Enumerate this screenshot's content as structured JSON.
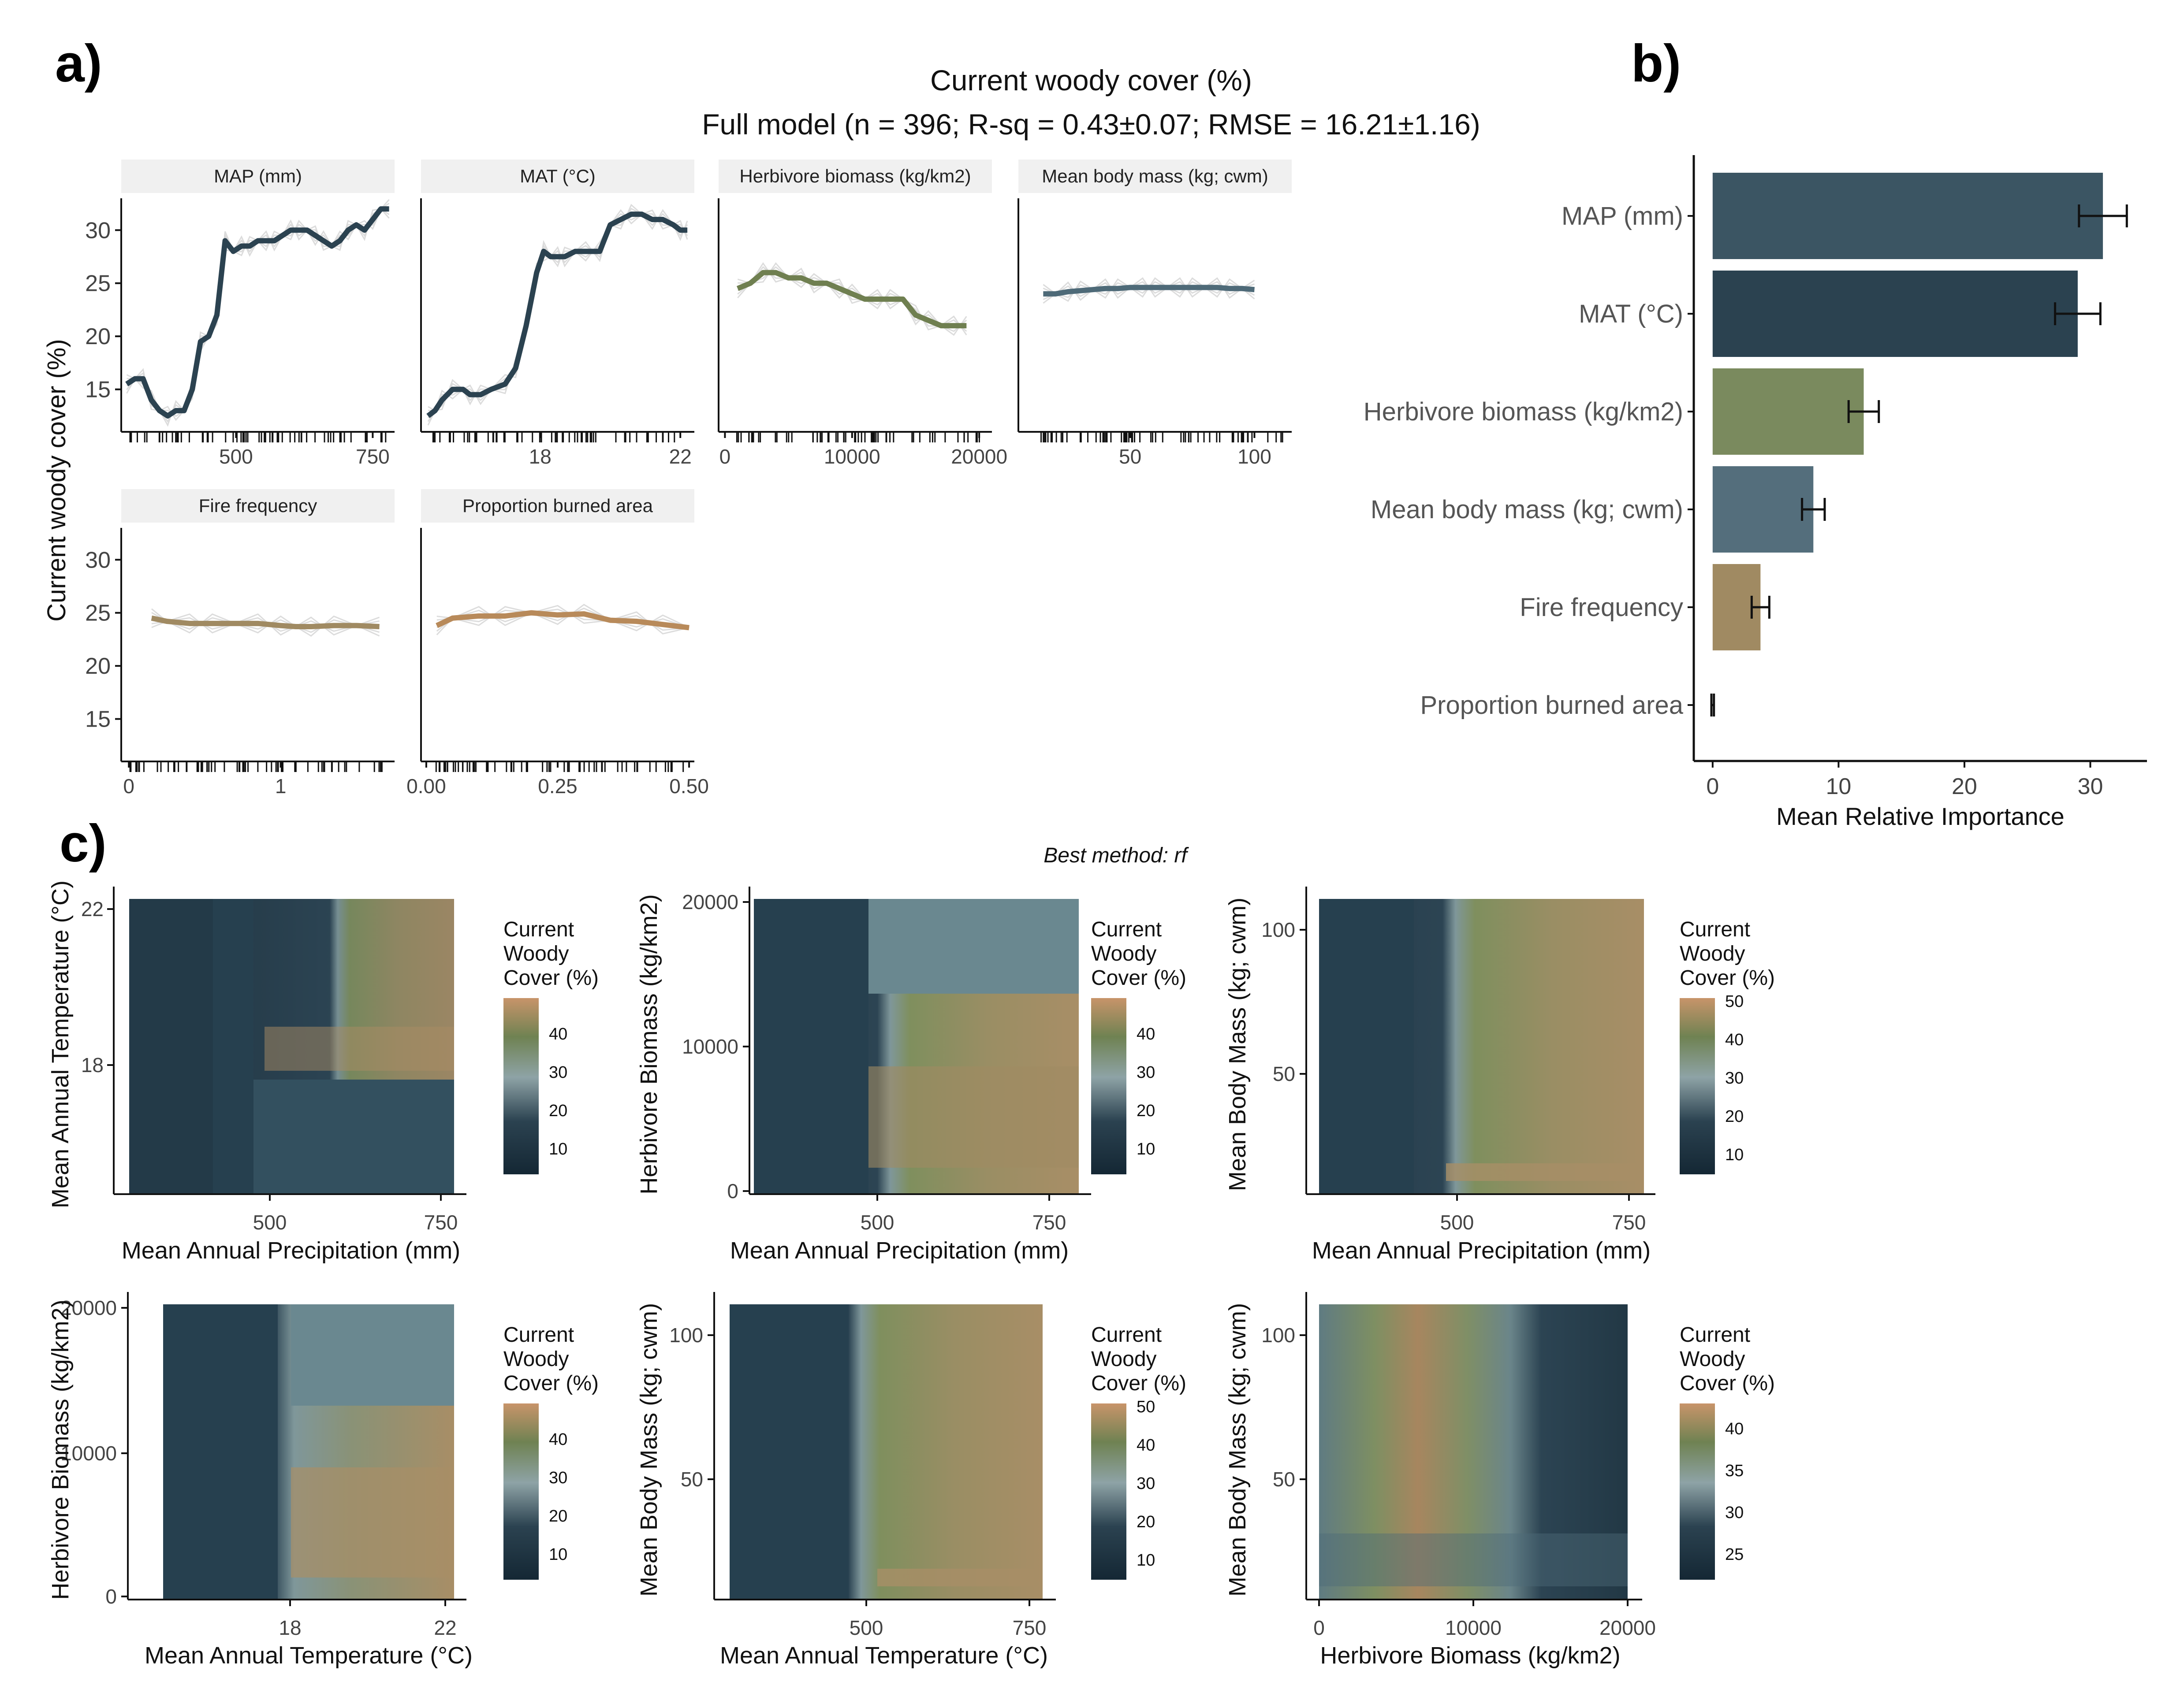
{
  "figure": {
    "panel_a_letter": "a)",
    "panel_b_letter": "b)",
    "panel_c_letter": "c)",
    "title_line1": "Current woody cover (%)",
    "title_line2": "Full model (n = 396; R-sq = 0.43±0.07; RMSE = 16.21±1.16)",
    "best_method": "Best method: rf"
  },
  "colors": {
    "dark_slate": "#2b4250",
    "olive_green": "#6f7f50",
    "steel_blue": "#4e6a78",
    "tan": "#a08a62",
    "burnt_orange": "#b88a5a",
    "strip_grey": "#f0f0f0"
  },
  "chart_data": [
    {
      "type": "line",
      "panel": "a",
      "ylabel": "Current woody cover (%)",
      "ylim": [
        11,
        33
      ],
      "yticks": [
        "15",
        "20",
        "25",
        "30"
      ],
      "grid": false,
      "facets": [
        {
          "title": "MAP (mm)",
          "xlim": [
            290,
            790
          ],
          "xticks": [
            "500",
            "750"
          ],
          "color": "#2b4250",
          "x": [
            300,
            315,
            330,
            345,
            360,
            375,
            390,
            405,
            420,
            435,
            450,
            465,
            480,
            495,
            510,
            525,
            540,
            555,
            570,
            585,
            600,
            615,
            630,
            645,
            660,
            675,
            690,
            705,
            720,
            735,
            750,
            765,
            780
          ],
          "y": [
            15.5,
            16,
            16,
            14,
            13,
            12.5,
            13,
            13,
            15,
            19.5,
            20,
            22,
            29,
            28,
            28.5,
            28.5,
            29,
            29,
            29,
            29.5,
            30,
            30,
            30,
            29.5,
            29,
            28.5,
            29,
            30,
            30.5,
            30,
            31,
            32,
            32
          ]
        },
        {
          "title": "MAT (°C)",
          "xlim": [
            14.6,
            22.4
          ],
          "xticks": [
            "18",
            "22"
          ],
          "color": "#2b4250",
          "x": [
            14.8,
            15,
            15.2,
            15.5,
            15.8,
            16,
            16.3,
            16.6,
            17,
            17.3,
            17.6,
            17.9,
            18.1,
            18.3,
            18.5,
            18.7,
            19,
            19.3,
            19.7,
            20,
            20.3,
            20.6,
            20.9,
            21.2,
            21.5,
            21.8,
            22,
            22.2
          ],
          "y": [
            12.5,
            13,
            14,
            15,
            15,
            14.5,
            14.5,
            15,
            15.5,
            17,
            21,
            26,
            28,
            27.5,
            27.5,
            27.5,
            28,
            28,
            28,
            30.5,
            31,
            31.5,
            31.5,
            31,
            31,
            30.5,
            30,
            30
          ]
        },
        {
          "title": "Herbivore biomass (kg/km2)",
          "xlim": [
            -500,
            21000
          ],
          "xticks": [
            "0",
            "10000",
            "20000"
          ],
          "color": "#6f7f50",
          "x": [
            1000,
            2000,
            3000,
            4000,
            5000,
            6000,
            7000,
            8000,
            9000,
            10000,
            11000,
            12000,
            13000,
            14000,
            15000,
            16000,
            17000,
            18000,
            19000
          ],
          "y": [
            24.5,
            25,
            26,
            26,
            25.5,
            25.5,
            25,
            25,
            24.5,
            24,
            23.5,
            23.5,
            23.5,
            23.5,
            22,
            21.5,
            21,
            21,
            21
          ]
        },
        {
          "title": "Mean body mass (kg; cwm)",
          "xlim": [
            5,
            115
          ],
          "xticks": [
            "50",
            "100"
          ],
          "color": "#4e6a78",
          "x": [
            15,
            20,
            25,
            30,
            35,
            40,
            45,
            50,
            55,
            60,
            65,
            70,
            75,
            80,
            85,
            90,
            95,
            100
          ],
          "y": [
            24,
            24,
            24.2,
            24.3,
            24.4,
            24.5,
            24.5,
            24.6,
            24.6,
            24.6,
            24.6,
            24.6,
            24.6,
            24.6,
            24.6,
            24.5,
            24.5,
            24.4
          ]
        },
        {
          "title": "Fire frequency",
          "xlim": [
            -0.05,
            1.75
          ],
          "xticks": [
            "0",
            "1"
          ],
          "color": "#a08a62",
          "x": [
            0.15,
            0.25,
            0.4,
            0.55,
            0.7,
            0.85,
            1,
            1.1,
            1.2,
            1.35,
            1.5,
            1.65
          ],
          "y": [
            24.5,
            24.2,
            24,
            24,
            24,
            24,
            23.8,
            23.7,
            23.7,
            23.8,
            23.8,
            23.7
          ]
        },
        {
          "title": "Proportion burned area",
          "xlim": [
            -0.01,
            0.51
          ],
          "xticks": [
            "0.00",
            "0.25",
            "0.50"
          ],
          "color": "#b88a5a",
          "x": [
            0.02,
            0.05,
            0.1,
            0.15,
            0.2,
            0.25,
            0.3,
            0.35,
            0.4,
            0.45,
            0.5
          ],
          "y": [
            23.8,
            24.5,
            24.7,
            24.7,
            25,
            24.8,
            24.9,
            24.3,
            24.2,
            23.9,
            23.6
          ]
        }
      ]
    },
    {
      "type": "bar",
      "panel": "b",
      "orientation": "horizontal",
      "categories": [
        "MAP (mm)",
        "MAT (°C)",
        "Herbivore biomass (kg/km2)",
        "Mean body mass (kg; cwm)",
        "Fire frequency",
        "Proportion burned area"
      ],
      "values": [
        31,
        29,
        12,
        8,
        3.8,
        0
      ],
      "errors": [
        1.9,
        1.8,
        1.2,
        0.9,
        0.7,
        0.1
      ],
      "colors": [
        "#3b5563",
        "#2b4250",
        "#7a8a5e",
        "#546e7c",
        "#a08a62",
        "#b88a5a"
      ],
      "xlabel": "Mean Relative Importance",
      "xlim": [
        -1.5,
        34.5
      ],
      "xticks": [
        0,
        10,
        20,
        30
      ],
      "grid": false
    },
    {
      "type": "heatmap",
      "panel": "c",
      "legend_title": [
        "Current",
        "Woody",
        "Cover (%)"
      ],
      "maps": [
        {
          "xlabel": "Mean Annual Precipitation (mm)",
          "ylabel": "Mean Annual Temperature (°C)",
          "xticks": [
            "500",
            "750"
          ],
          "yticks": [
            "18",
            "22"
          ],
          "legend_ticks": [
            "10",
            "20",
            "30",
            "40"
          ]
        },
        {
          "xlabel": "Mean Annual Precipitation (mm)",
          "ylabel": "Herbivore Biomass (kg/km2)",
          "xticks": [
            "500",
            "750"
          ],
          "yticks": [
            "0",
            "10000",
            "20000"
          ],
          "legend_ticks": [
            "10",
            "20",
            "30",
            "40"
          ]
        },
        {
          "xlabel": "Mean Annual Precipitation (mm)",
          "ylabel": "Mean Body Mass (kg; cwm)",
          "xticks": [
            "500",
            "750"
          ],
          "yticks": [
            "50",
            "100"
          ],
          "legend_ticks": [
            "10",
            "20",
            "30",
            "40",
            "50"
          ]
        },
        {
          "xlabel": "Mean Annual Temperature (°C)",
          "ylabel": "Herbivore Biomass (kg/km2)",
          "xticks": [
            "18",
            "22"
          ],
          "yticks": [
            "0",
            "10000",
            "20000"
          ],
          "legend_ticks": [
            "10",
            "20",
            "30",
            "40"
          ]
        },
        {
          "xlabel": "Mean Annual Temperature (°C)",
          "ylabel": "Mean Body Mass (kg; cwm)",
          "xticks": [
            "500",
            "750"
          ],
          "yticks": [
            "50",
            "100"
          ],
          "legend_ticks": [
            "10",
            "20",
            "30",
            "40",
            "50"
          ]
        },
        {
          "xlabel": "Herbivore Biomass (kg/km2)",
          "ylabel": "Mean Body Mass (kg; cwm)",
          "xticks": [
            "0",
            "10000",
            "20000"
          ],
          "yticks": [
            "50",
            "100"
          ],
          "legend_ticks": [
            "25",
            "30",
            "35",
            "40"
          ]
        }
      ]
    }
  ]
}
